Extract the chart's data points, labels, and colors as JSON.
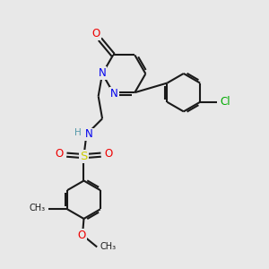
{
  "bg_color": "#e8e8e8",
  "bond_color": "#1a1a1a",
  "bond_width": 1.5,
  "colors": {
    "N": "#0000ee",
    "O": "#ee0000",
    "S": "#cccc00",
    "Cl": "#00aa00",
    "C": "#1a1a1a",
    "H": "#5599aa"
  },
  "figsize": [
    3.0,
    3.0
  ],
  "dpi": 100,
  "xlim": [
    0,
    10
  ],
  "ylim": [
    0,
    10
  ]
}
